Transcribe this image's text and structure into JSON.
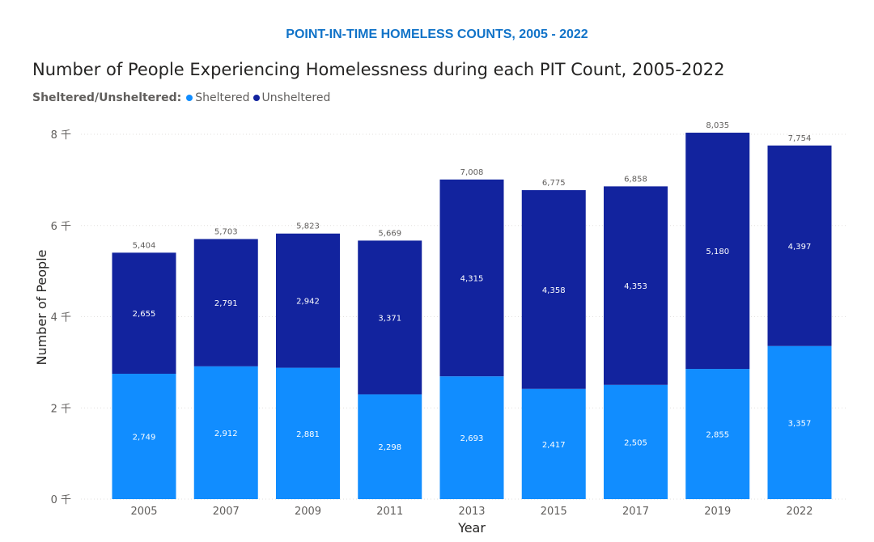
{
  "header": {
    "title": "POINT-IN-TIME HOMELESS COUNTS, 2005 - 2022"
  },
  "chart_data": {
    "type": "bar",
    "stacked": true,
    "title": "Number of People Experiencing Homelessness during each PIT Count, 2005-2022",
    "legend_title": "Sheltered/Unsheltered:",
    "legend_position": "top-left",
    "xlabel": "Year",
    "ylabel": "Number of People",
    "grid": true,
    "ylim": [
      0,
      8000
    ],
    "yticks": [
      {
        "value": 0,
        "label": "0 千"
      },
      {
        "value": 2000,
        "label": "2 千"
      },
      {
        "value": 4000,
        "label": "4 千"
      },
      {
        "value": 6000,
        "label": "6 千"
      },
      {
        "value": 8000,
        "label": "8 千"
      }
    ],
    "categories": [
      "2005",
      "2007",
      "2009",
      "2011",
      "2013",
      "2015",
      "2017",
      "2019",
      "2022"
    ],
    "series": [
      {
        "name": "Sheltered",
        "color": "#118dff",
        "values": [
          2749,
          2912,
          2881,
          2298,
          2693,
          2417,
          2505,
          2855,
          3357
        ],
        "labels": [
          "2,749",
          "2,912",
          "2,881",
          "2,298",
          "2,693",
          "2,417",
          "2,505",
          "2,855",
          "3,357"
        ]
      },
      {
        "name": "Unsheltered",
        "color": "#12239e",
        "values": [
          2655,
          2791,
          2942,
          3371,
          4315,
          4358,
          4353,
          5180,
          4397
        ],
        "labels": [
          "2,655",
          "2,791",
          "2,942",
          "3,371",
          "4,315",
          "4,358",
          "4,353",
          "5,180",
          "4,397"
        ]
      }
    ],
    "totals": [
      5404,
      5703,
      5823,
      5669,
      7008,
      6775,
      6858,
      8035,
      7754
    ],
    "total_labels": [
      "5,404",
      "5,703",
      "5,823",
      "5,669",
      "7,008",
      "6,775",
      "6,858",
      "8,035",
      "7,754"
    ]
  }
}
